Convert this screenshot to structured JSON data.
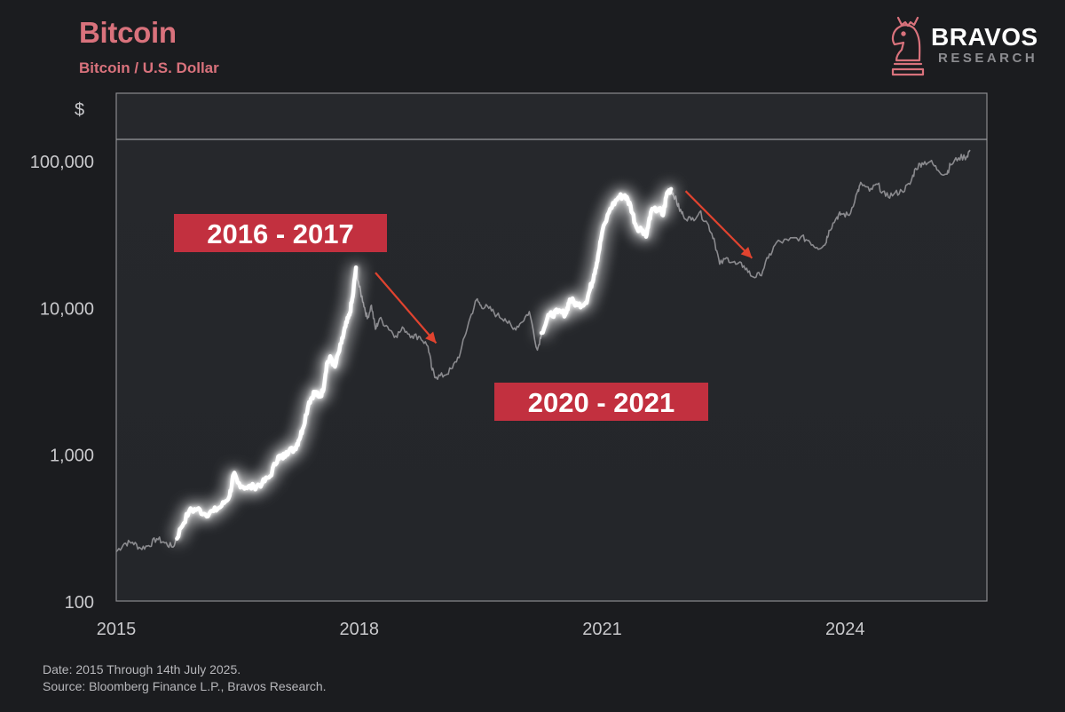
{
  "header": {
    "title": "Bitcoin",
    "subtitle": "Bitcoin / U.S. Dollar"
  },
  "logo": {
    "name": "BRAVOS",
    "sub": "RESEARCH",
    "icon": "knight-chess-piece-icon",
    "color": "#d9727c"
  },
  "footer": {
    "date_note": "Date: 2015 Through 14th July 2025.",
    "source_note": "Source: Bloomberg Finance L.P., Bravos Research."
  },
  "chart_data": {
    "type": "line",
    "title": "Bitcoin",
    "subtitle": "Bitcoin / U.S. Dollar",
    "y_unit_label": "$",
    "y_scale": "log",
    "ylim": [
      100,
      160000
    ],
    "xlim": [
      2015.0,
      2025.75
    ],
    "x_ticks": [
      2015,
      2018,
      2021,
      2024
    ],
    "x_tick_labels": [
      "2015",
      "2018",
      "2021",
      "2024"
    ],
    "y_ticks": [
      100,
      1000,
      10000,
      100000
    ],
    "y_tick_labels": [
      "100",
      "1,000",
      "10,000",
      "100,000"
    ],
    "grid": false,
    "colors": {
      "base_line": "#8a8a8e",
      "highlight_line": "#ffffff",
      "label_box": "#c2303f",
      "arrow": "#e0432f",
      "plot_border": "#8a8a8e",
      "background": "#1b1c1f"
    },
    "series": [
      {
        "values": [
          [
            2015.0,
            220
          ],
          [
            2015.1,
            250
          ],
          [
            2015.2,
            255
          ],
          [
            2015.3,
            232
          ],
          [
            2015.4,
            242
          ],
          [
            2015.5,
            270
          ],
          [
            2015.6,
            252
          ],
          [
            2015.7,
            236
          ],
          [
            2015.8,
            320
          ],
          [
            2015.9,
            415
          ],
          [
            2016.0,
            430
          ],
          [
            2016.1,
            395
          ],
          [
            2016.2,
            415
          ],
          [
            2016.3,
            450
          ],
          [
            2016.4,
            530
          ],
          [
            2016.45,
            740
          ],
          [
            2016.5,
            650
          ],
          [
            2016.6,
            600
          ],
          [
            2016.7,
            610
          ],
          [
            2016.8,
            640
          ],
          [
            2016.9,
            720
          ],
          [
            2017.0,
            980
          ],
          [
            2017.05,
            960
          ],
          [
            2017.1,
            1050
          ],
          [
            2017.2,
            1100
          ],
          [
            2017.25,
            1250
          ],
          [
            2017.3,
            1500
          ],
          [
            2017.38,
            2300
          ],
          [
            2017.45,
            2700
          ],
          [
            2017.5,
            2500
          ],
          [
            2017.55,
            2700
          ],
          [
            2017.6,
            4200
          ],
          [
            2017.65,
            4600
          ],
          [
            2017.7,
            4000
          ],
          [
            2017.78,
            5800
          ],
          [
            2017.83,
            7500
          ],
          [
            2017.88,
            9000
          ],
          [
            2017.92,
            12000
          ],
          [
            2017.96,
            19000
          ],
          [
            2018.0,
            14000
          ],
          [
            2018.05,
            11000
          ],
          [
            2018.1,
            8500
          ],
          [
            2018.15,
            10500
          ],
          [
            2018.2,
            7200
          ],
          [
            2018.25,
            8500
          ],
          [
            2018.35,
            7500
          ],
          [
            2018.45,
            6500
          ],
          [
            2018.55,
            7300
          ],
          [
            2018.65,
            6500
          ],
          [
            2018.75,
            6400
          ],
          [
            2018.85,
            5500
          ],
          [
            2018.9,
            3800
          ],
          [
            2018.95,
            3400
          ],
          [
            2019.05,
            3500
          ],
          [
            2019.15,
            3900
          ],
          [
            2019.25,
            5000
          ],
          [
            2019.35,
            8000
          ],
          [
            2019.45,
            11500
          ],
          [
            2019.5,
            10500
          ],
          [
            2019.6,
            10000
          ],
          [
            2019.7,
            9000
          ],
          [
            2019.8,
            8500
          ],
          [
            2019.9,
            7200
          ],
          [
            2020.0,
            8000
          ],
          [
            2020.1,
            9500
          ],
          [
            2020.2,
            5200
          ],
          [
            2020.25,
            6800
          ],
          [
            2020.35,
            9000
          ],
          [
            2020.45,
            9400
          ],
          [
            2020.55,
            9200
          ],
          [
            2020.6,
            11500
          ],
          [
            2020.7,
            10500
          ],
          [
            2020.8,
            11000
          ],
          [
            2020.85,
            13500
          ],
          [
            2020.9,
            17000
          ],
          [
            2020.95,
            23000
          ],
          [
            2021.0,
            33000
          ],
          [
            2021.1,
            48000
          ],
          [
            2021.2,
            57000
          ],
          [
            2021.28,
            59000
          ],
          [
            2021.35,
            50000
          ],
          [
            2021.42,
            36000
          ],
          [
            2021.5,
            34000
          ],
          [
            2021.55,
            32000
          ],
          [
            2021.6,
            45000
          ],
          [
            2021.7,
            48000
          ],
          [
            2021.75,
            43000
          ],
          [
            2021.8,
            61000
          ],
          [
            2021.85,
            65000
          ],
          [
            2021.9,
            57000
          ],
          [
            2021.95,
            48000
          ],
          [
            2022.0,
            43000
          ],
          [
            2022.1,
            40000
          ],
          [
            2022.2,
            45000
          ],
          [
            2022.3,
            38000
          ],
          [
            2022.38,
            30000
          ],
          [
            2022.45,
            20000
          ],
          [
            2022.55,
            22000
          ],
          [
            2022.65,
            20000
          ],
          [
            2022.75,
            19500
          ],
          [
            2022.85,
            16500
          ],
          [
            2022.95,
            16800
          ],
          [
            2023.05,
            22000
          ],
          [
            2023.15,
            28000
          ],
          [
            2023.3,
            29000
          ],
          [
            2023.45,
            30500
          ],
          [
            2023.55,
            29000
          ],
          [
            2023.65,
            26000
          ],
          [
            2023.75,
            27000
          ],
          [
            2023.8,
            34000
          ],
          [
            2023.9,
            42000
          ],
          [
            2023.95,
            44000
          ],
          [
            2024.05,
            43000
          ],
          [
            2024.15,
            62000
          ],
          [
            2024.2,
            71000
          ],
          [
            2024.3,
            63000
          ],
          [
            2024.4,
            70000
          ],
          [
            2024.5,
            58000
          ],
          [
            2024.6,
            60000
          ],
          [
            2024.7,
            63000
          ],
          [
            2024.8,
            70000
          ],
          [
            2024.87,
            90000
          ],
          [
            2024.95,
            98000
          ],
          [
            2025.05,
            100000
          ],
          [
            2025.15,
            87000
          ],
          [
            2025.25,
            82000
          ],
          [
            2025.3,
            95000
          ],
          [
            2025.4,
            106000
          ],
          [
            2025.5,
            108000
          ],
          [
            2025.54,
            120000
          ]
        ],
        "highlight_ranges": [
          [
            2015.75,
            2017.96
          ],
          [
            2020.25,
            2021.85
          ]
        ]
      }
    ],
    "annotations": [
      {
        "label": "2016 - 2017",
        "arrow_from": [
          2018.2,
          17500
        ],
        "arrow_to": [
          2018.95,
          5800
        ]
      },
      {
        "label": "2020 - 2021",
        "arrow_from": [
          2022.03,
          63000
        ],
        "arrow_to": [
          2022.85,
          22000
        ]
      }
    ]
  }
}
